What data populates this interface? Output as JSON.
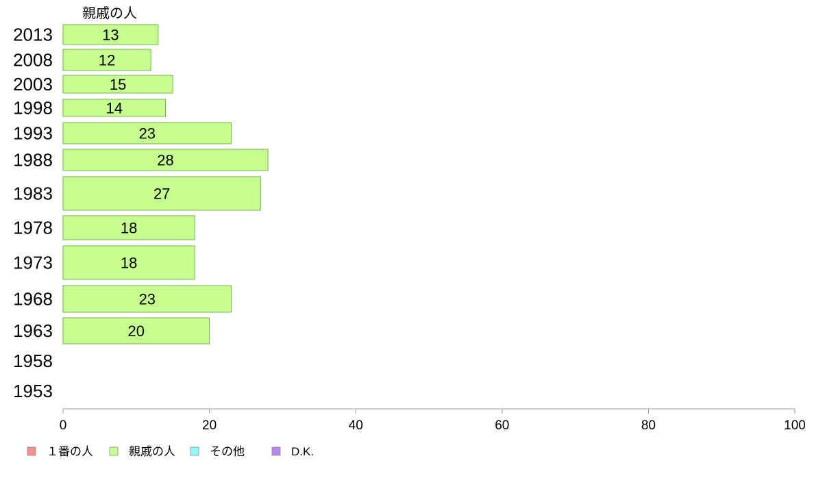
{
  "chart_data": {
    "type": "bar",
    "orientation": "horizontal",
    "stacked": true,
    "series_title": "親戚の人",
    "categories": [
      "2013",
      "2008",
      "2003",
      "1998",
      "1993",
      "1988",
      "1983",
      "1978",
      "1973",
      "1968",
      "1963",
      "1958",
      "1953"
    ],
    "series": [
      {
        "name": "親戚の人",
        "values": [
          13,
          12,
          15,
          14,
          23,
          28,
          27,
          18,
          18,
          23,
          20,
          null,
          null
        ]
      }
    ],
    "bar_labels": [
      "13",
      "12",
      "15",
      "14",
      "23",
      "28",
      "27",
      "18",
      "18",
      "23",
      "20",
      "",
      ""
    ],
    "xlim": [
      0,
      100
    ],
    "x_ticks": [
      0,
      20,
      40,
      60,
      80,
      100
    ],
    "grid": false,
    "legend": {
      "placement": "bottom-left",
      "items": [
        {
          "label": "１番の人",
          "color": "#f78f8f"
        },
        {
          "label": "親戚の人",
          "color": "#c6ff8f"
        },
        {
          "label": "その他",
          "color": "#8ffcfc"
        },
        {
          "label": "D.K.",
          "color": "#b388f5"
        }
      ]
    },
    "colors": {
      "bar_fill": "#c6ff8f",
      "bar_stroke": "#74b14a",
      "axis": "#999999"
    }
  }
}
